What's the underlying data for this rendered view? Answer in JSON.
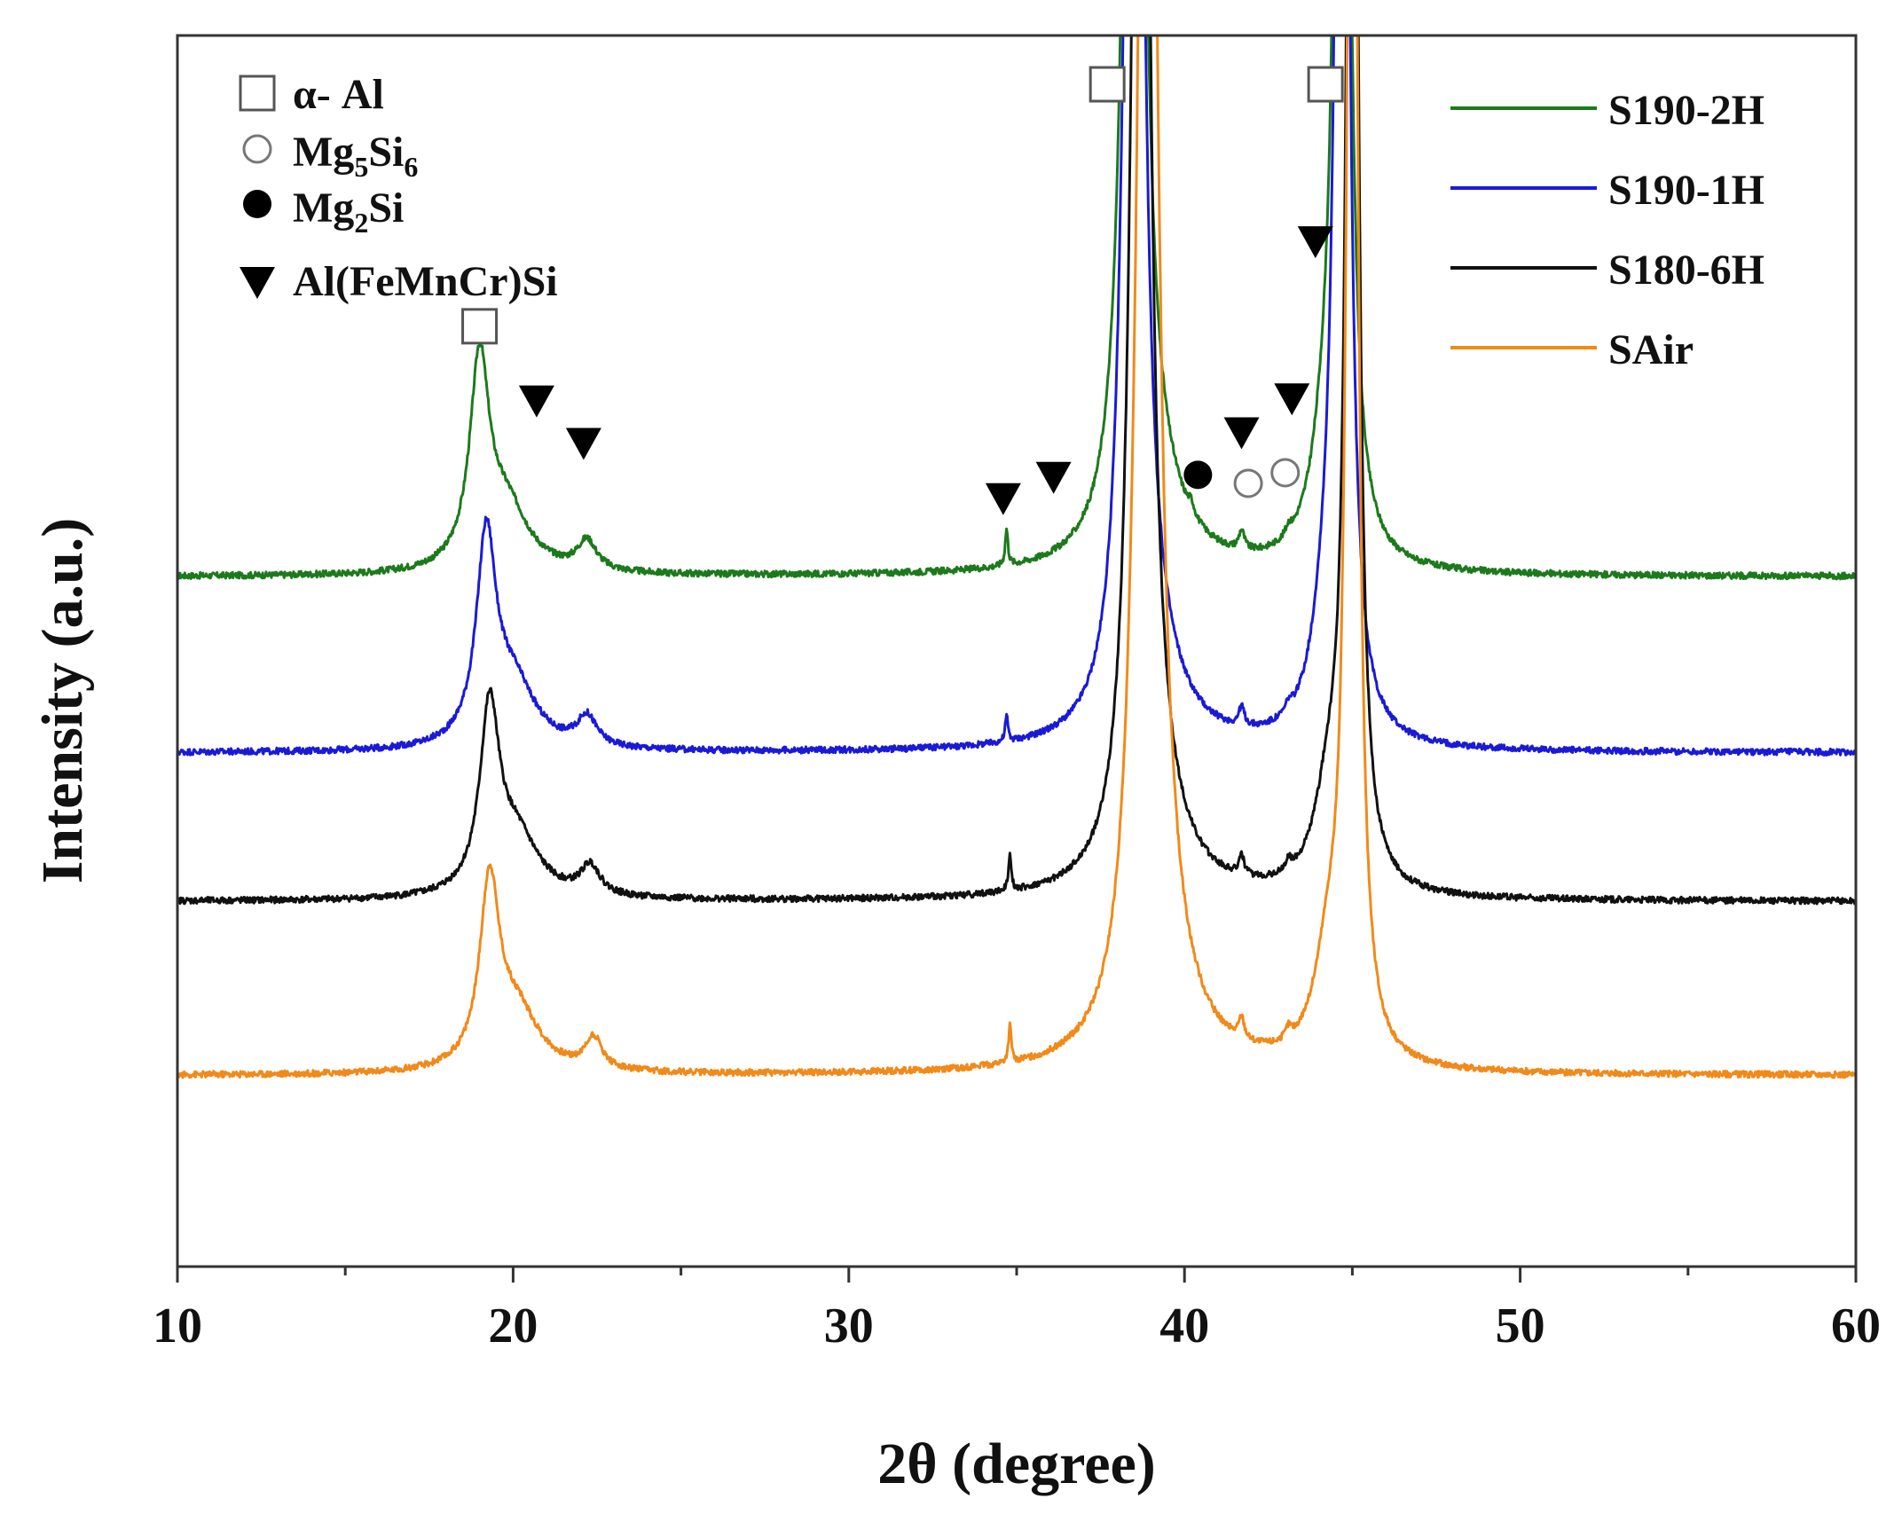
{
  "chart_data": {
    "type": "line",
    "title": "",
    "xlabel": "2θ (degree)",
    "ylabel": "Intensity (a.u.)",
    "xlim": [
      10,
      60
    ],
    "xticks": [
      10,
      20,
      30,
      40,
      50,
      60
    ],
    "tick_labels": [
      "10",
      "20",
      "30",
      "40",
      "50",
      "60"
    ],
    "yticks_shown": false,
    "grid": false,
    "legend_position": "top-right",
    "phase_legend_position": "top-left",
    "series": [
      {
        "name": "S190-2H",
        "color": "#1c7a1c",
        "baseline": 2.45,
        "peaks": [
          [
            19.0,
            0.95,
            0.35
          ],
          [
            19.8,
            0.3,
            0.8
          ],
          [
            22.2,
            0.14,
            0.35
          ],
          [
            34.7,
            0.17,
            0.05
          ],
          [
            38.5,
            9.0,
            0.25
          ],
          [
            39.1,
            0.25,
            1.0
          ],
          [
            40.2,
            0.05,
            0.1
          ],
          [
            41.7,
            0.09,
            0.1
          ],
          [
            43.1,
            0.04,
            0.1
          ],
          [
            44.7,
            9.0,
            0.18
          ],
          [
            44.2,
            0.4,
            0.5
          ]
        ]
      },
      {
        "name": "S190-1H",
        "color": "#1a1ad6",
        "baseline": 1.62,
        "peaks": [
          [
            19.2,
            0.95,
            0.35
          ],
          [
            20.0,
            0.3,
            0.8
          ],
          [
            22.2,
            0.14,
            0.35
          ],
          [
            34.7,
            0.12,
            0.05
          ],
          [
            38.5,
            9.0,
            0.25
          ],
          [
            39.1,
            0.25,
            1.0
          ],
          [
            41.7,
            0.09,
            0.1
          ],
          [
            43.1,
            0.04,
            0.1
          ],
          [
            44.7,
            9.0,
            0.18
          ],
          [
            44.2,
            0.4,
            0.5
          ]
        ]
      },
      {
        "name": "S180-6H",
        "color": "#111111",
        "baseline": 0.92,
        "peaks": [
          [
            19.3,
            0.85,
            0.35
          ],
          [
            20.1,
            0.28,
            0.8
          ],
          [
            22.3,
            0.14,
            0.35
          ],
          [
            34.8,
            0.18,
            0.05
          ],
          [
            38.7,
            9.0,
            0.25
          ],
          [
            39.2,
            0.25,
            1.0
          ],
          [
            41.7,
            0.09,
            0.1
          ],
          [
            43.1,
            0.05,
            0.1
          ],
          [
            45.0,
            9.0,
            0.16
          ],
          [
            44.3,
            0.4,
            0.5
          ]
        ]
      },
      {
        "name": "SAir",
        "color": "#f08a1a",
        "baseline": 0.1,
        "peaks": [
          [
            19.3,
            0.85,
            0.35
          ],
          [
            20.1,
            0.28,
            0.8
          ],
          [
            22.4,
            0.15,
            0.3
          ],
          [
            34.8,
            0.17,
            0.05
          ],
          [
            38.9,
            9.0,
            0.3
          ],
          [
            39.4,
            0.28,
            1.0
          ],
          [
            41.7,
            0.1,
            0.1
          ],
          [
            43.1,
            0.05,
            0.1
          ],
          [
            45.0,
            9.0,
            0.16
          ],
          [
            44.3,
            0.45,
            0.5
          ]
        ]
      }
    ],
    "phase_legend": [
      {
        "symbol": "open-square",
        "label": "α- Al"
      },
      {
        "symbol": "open-circle",
        "label": "Mg",
        "sub1": "5",
        "label2": "Si",
        "sub2": "6"
      },
      {
        "symbol": "filled-circle",
        "label": "Mg",
        "sub1": "2",
        "label2": "Si",
        "sub2": ""
      },
      {
        "symbol": "filled-triangle",
        "label": "Al(FeMnCr)Si"
      }
    ],
    "annotations": [
      {
        "symbol": "open-square",
        "x": 19.0,
        "y": 3.63
      },
      {
        "symbol": "filled-triangle",
        "x": 20.7,
        "y": 3.28
      },
      {
        "symbol": "filled-triangle",
        "x": 22.1,
        "y": 3.08
      },
      {
        "symbol": "filled-triangle",
        "x": 34.6,
        "y": 2.82
      },
      {
        "symbol": "filled-triangle",
        "x": 36.1,
        "y": 2.92
      },
      {
        "symbol": "open-square",
        "x": 37.7,
        "y": 4.77
      },
      {
        "symbol": "filled-circle",
        "x": 40.4,
        "y": 2.93
      },
      {
        "symbol": "open-circle",
        "x": 41.9,
        "y": 2.89
      },
      {
        "symbol": "filled-triangle",
        "x": 41.7,
        "y": 3.13
      },
      {
        "symbol": "open-circle",
        "x": 43.0,
        "y": 2.94
      },
      {
        "symbol": "filled-triangle",
        "x": 43.2,
        "y": 3.29
      },
      {
        "symbol": "filled-triangle",
        "x": 43.9,
        "y": 4.03
      },
      {
        "symbol": "open-square",
        "x": 44.2,
        "y": 4.77
      }
    ]
  }
}
